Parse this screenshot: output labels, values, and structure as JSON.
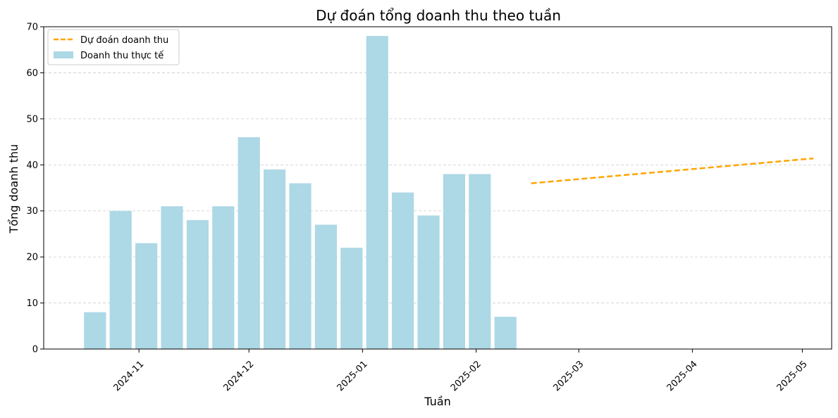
{
  "chart_data": {
    "type": "bar",
    "title": "Dự đoán tổng doanh thu theo tuần",
    "xlabel": "Tuần",
    "ylabel": "Tổng doanh thu",
    "ylim": [
      0,
      70
    ],
    "yticks": [
      0,
      10,
      20,
      30,
      40,
      50,
      60,
      70
    ],
    "xlim": [
      "2024-10-06",
      "2025-05-09"
    ],
    "xticks": [
      "2024-11-01",
      "2024-12-01",
      "2025-01-01",
      "2025-02-01",
      "2025-03-01",
      "2025-04-01",
      "2025-05-01"
    ],
    "xtick_labels": [
      "2024-11",
      "2024-12",
      "2025-01",
      "2025-02",
      "2025-03",
      "2025-04",
      "2025-05"
    ],
    "grid": "y, dashed",
    "legend_position": "top-left",
    "series": [
      {
        "name": "Doanh thu thực tế",
        "kind": "bar",
        "color": "#add8e6",
        "x": [
          "2024-10-20",
          "2024-10-27",
          "2024-11-03",
          "2024-11-10",
          "2024-11-17",
          "2024-11-24",
          "2024-12-01",
          "2024-12-08",
          "2024-12-15",
          "2024-12-22",
          "2024-12-29",
          "2025-01-05",
          "2025-01-12",
          "2025-01-19",
          "2025-01-26",
          "2025-02-02",
          "2025-02-09"
        ],
        "values": [
          8,
          30,
          23,
          31,
          28,
          31,
          46,
          39,
          36,
          27,
          22,
          68,
          34,
          29,
          38,
          38,
          7
        ]
      },
      {
        "name": "Dự đoán doanh thu",
        "kind": "line",
        "style": "dashed",
        "color": "#ffa500",
        "x": [
          "2025-02-16",
          "2025-05-04"
        ],
        "values": [
          36,
          41.4
        ]
      }
    ]
  }
}
